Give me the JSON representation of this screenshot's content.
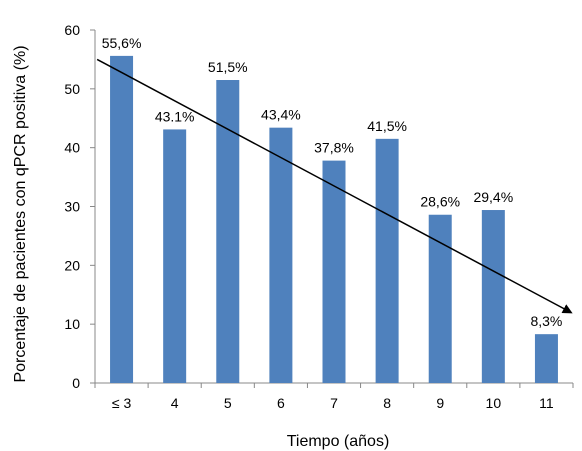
{
  "chart_data": {
    "type": "bar",
    "title": "",
    "xlabel": "Tiempo (años)",
    "ylabel": "Porcentaje de pacientes con qPCR positiva (%)",
    "categories": [
      "≤ 3",
      "4",
      "5",
      "6",
      "7",
      "8",
      "9",
      "10",
      "11"
    ],
    "values": [
      55.6,
      43.1,
      51.5,
      43.4,
      37.8,
      41.5,
      28.6,
      29.4,
      8.3
    ],
    "value_labels": [
      "55,6%",
      "43.1%",
      "51,5%",
      "43,4%",
      "37,8%",
      "41,5%",
      "28,6%",
      "29,4%",
      "8,3%"
    ],
    "ylim": [
      0,
      60
    ],
    "yticks": [
      "0",
      "10",
      "20",
      "30",
      "40",
      "50",
      "60"
    ],
    "trendline": {
      "from": 55,
      "to": 12
    },
    "grid": false,
    "legend": "none",
    "bar_color": "#4F81BD",
    "trend_color": "#000000"
  }
}
